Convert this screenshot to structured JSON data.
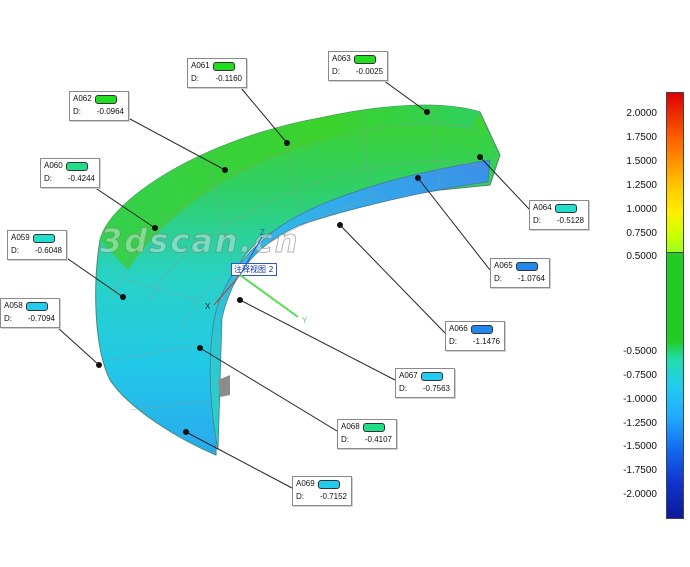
{
  "watermark": "3dscan.cn",
  "view_label": "注释视图 2",
  "axes": {
    "z": "Z",
    "x": "X",
    "y": "Y"
  },
  "callouts": [
    {
      "id": "A061",
      "d_label": "D:",
      "value": "-0.1160",
      "color": "#22dd22"
    },
    {
      "id": "A063",
      "d_label": "D:",
      "value": "-0.0025",
      "color": "#22dd22"
    },
    {
      "id": "A062",
      "d_label": "D:",
      "value": "-0.0964",
      "color": "#22dd22"
    },
    {
      "id": "A060",
      "d_label": "D:",
      "value": "-0.4244",
      "color": "#22dd88"
    },
    {
      "id": "A064",
      "d_label": "D:",
      "value": "-0.5128",
      "color": "#22ddcc"
    },
    {
      "id": "A059",
      "d_label": "D:",
      "value": "-0.6048",
      "color": "#22ddcc"
    },
    {
      "id": "A065",
      "d_label": "D:",
      "value": "-1.0764",
      "color": "#2288ee"
    },
    {
      "id": "A058",
      "d_label": "D:",
      "value": "-0.7094",
      "color": "#22ccee"
    },
    {
      "id": "A066",
      "d_label": "D:",
      "value": "-1.1476",
      "color": "#2288ee"
    },
    {
      "id": "A067",
      "d_label": "D:",
      "value": "-0.7563",
      "color": "#22ccee"
    },
    {
      "id": "A068",
      "d_label": "D:",
      "value": "-0.4107",
      "color": "#22dd88"
    },
    {
      "id": "A069",
      "d_label": "D:",
      "value": "-0.7152",
      "color": "#22ccee"
    }
  ],
  "scale": {
    "labels": [
      "2.0000",
      "1.7500",
      "1.5000",
      "1.2500",
      "1.0000",
      "0.7500",
      "0.5000",
      "-0.5000",
      "-0.7500",
      "-1.0000",
      "-1.2500",
      "-1.5000",
      "-1.7500",
      "-2.0000"
    ],
    "colors": [
      "#dd0000",
      "#ee3300",
      "#ff6600",
      "#ff9900",
      "#ffcc00",
      "#ffee00",
      "#ccff00",
      "#22cc22",
      "#22ddaa",
      "#22ccee",
      "#22aaff",
      "#1166ee",
      "#1133cc",
      "#0a1a99"
    ]
  }
}
